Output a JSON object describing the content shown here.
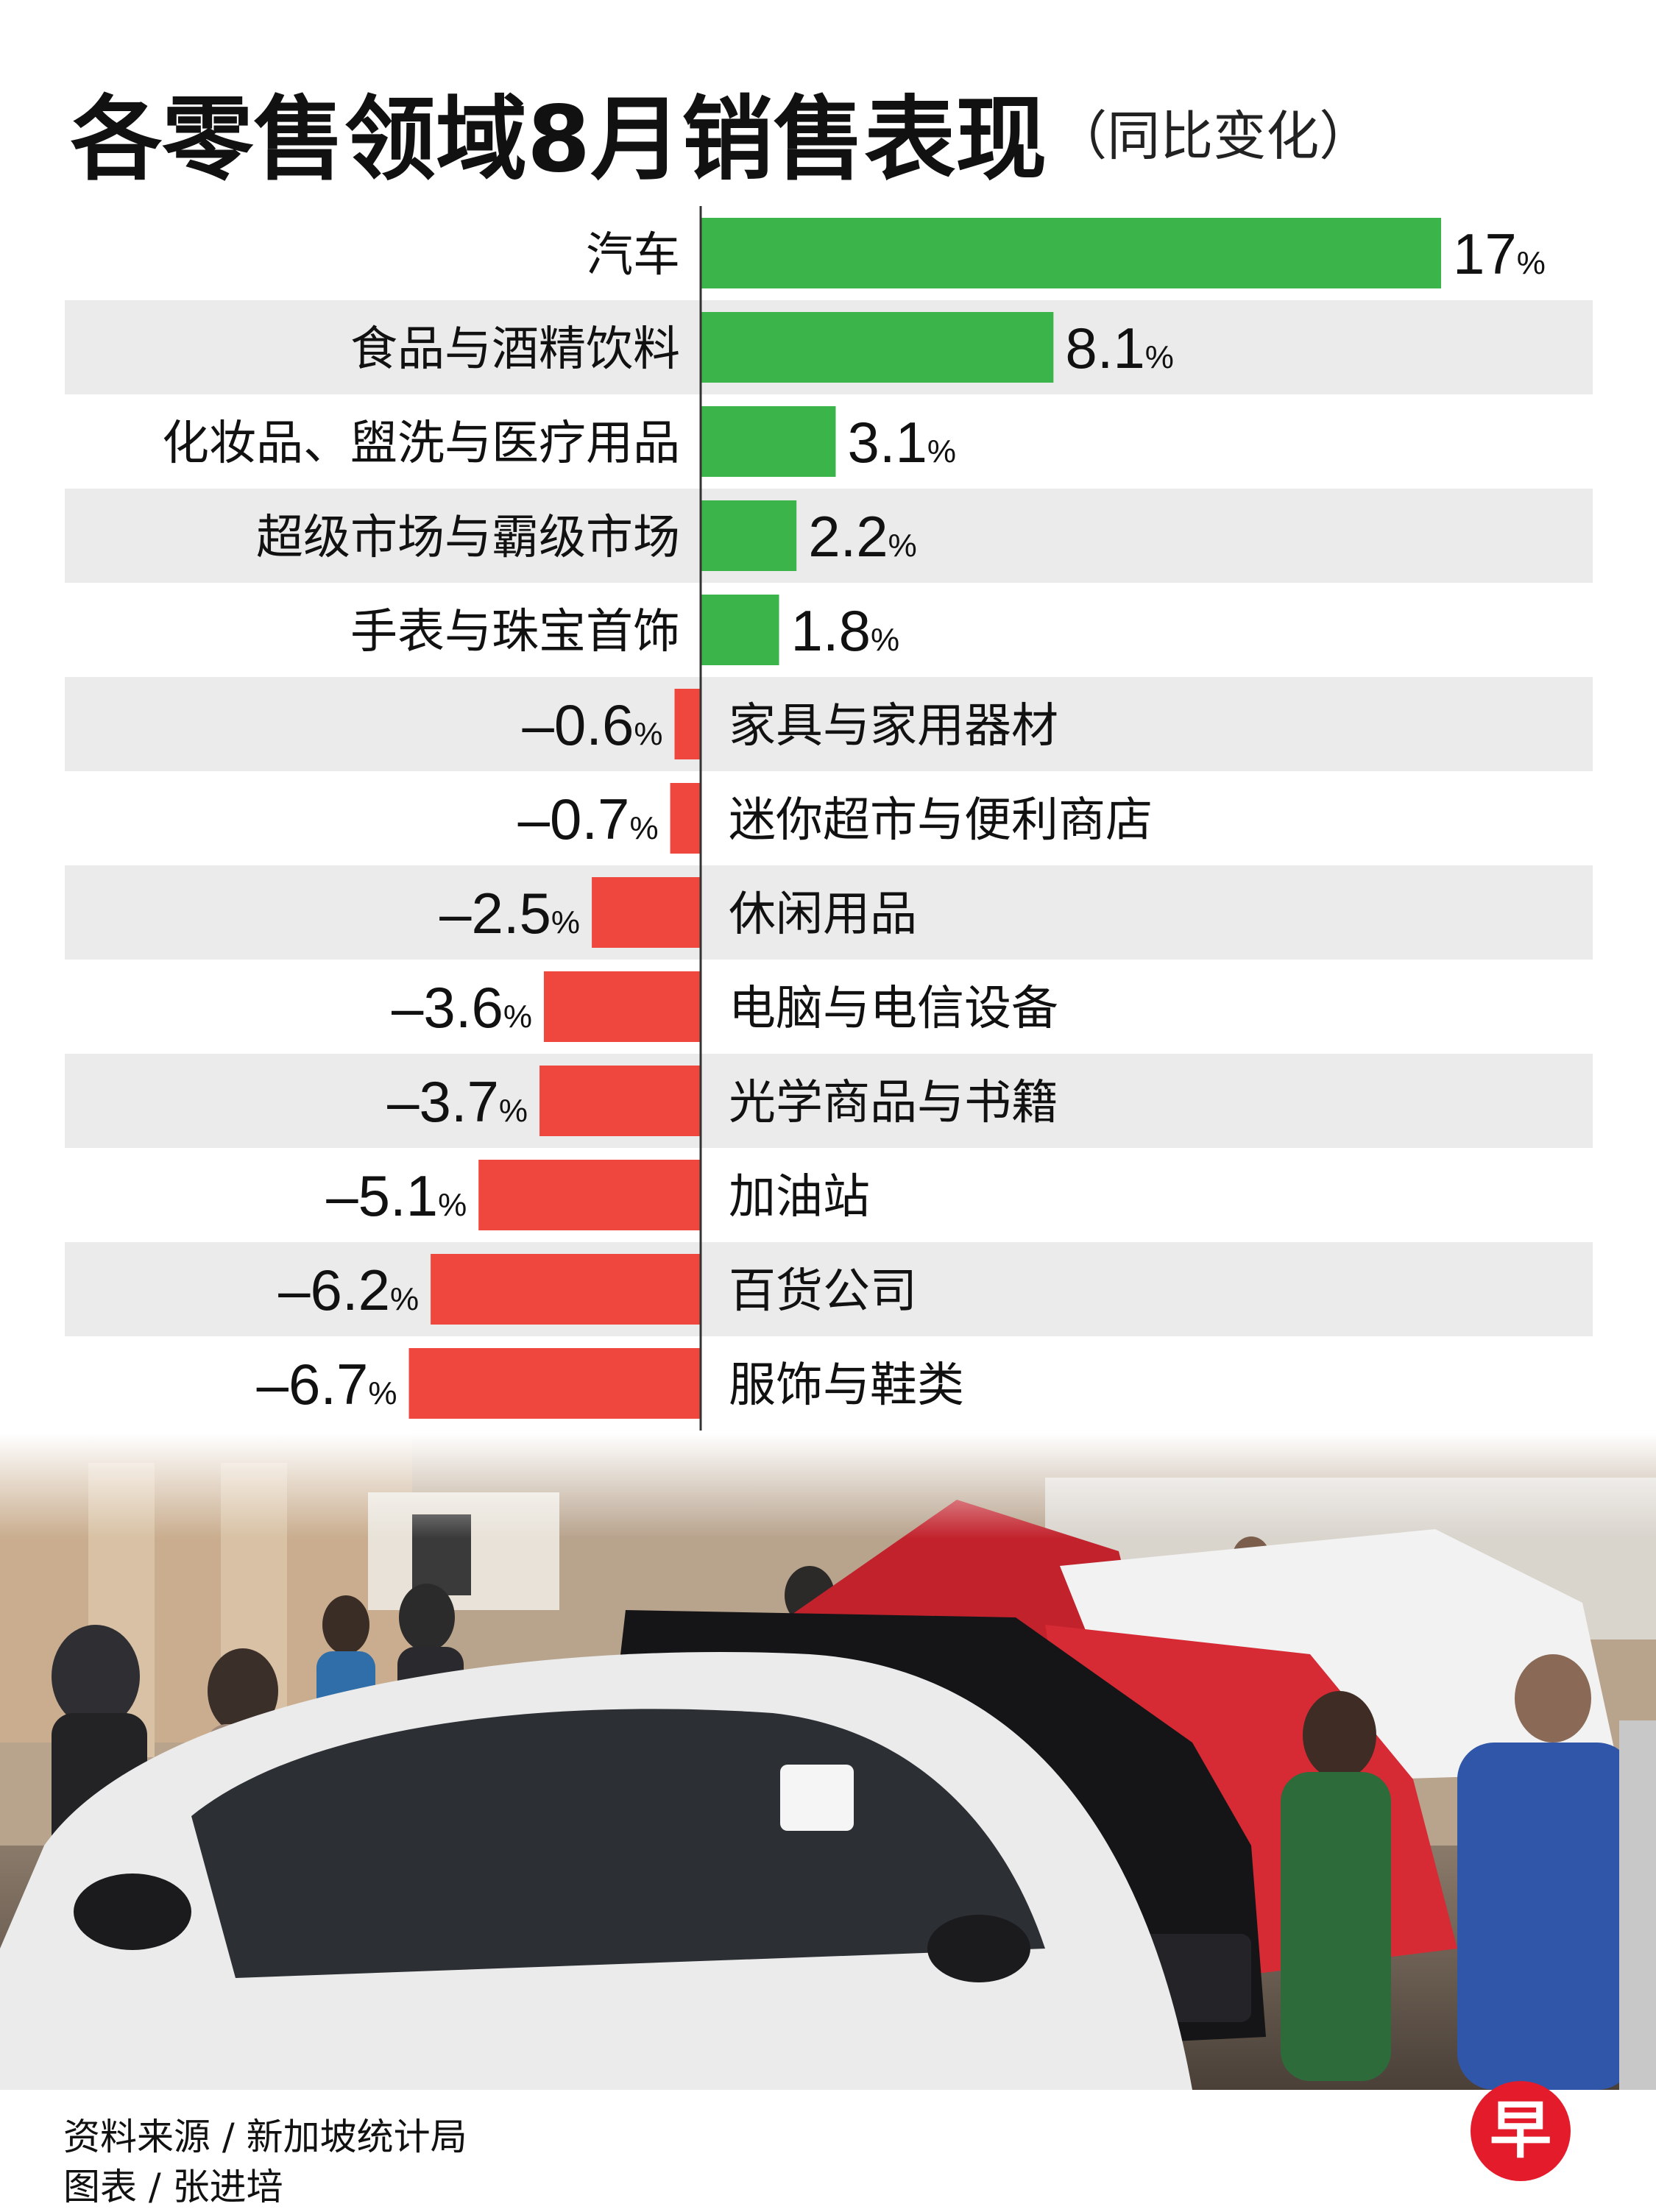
{
  "title": {
    "main": "各零售领域8月销售表现",
    "sub": "（同比变化）"
  },
  "chart_data": {
    "type": "bar",
    "orientation": "horizontal",
    "title": "各零售领域8月销售表现（同比变化）",
    "unit": "%",
    "categories": [
      "汽车",
      "食品与酒精饮料",
      "化妆品、盥洗与医疗用品",
      "超级市场与霸级市场",
      "手表与珠宝首饰",
      "家具与家用器材",
      "迷你超市与便利商店",
      "休闲用品",
      "电脑与电信设备",
      "光学商品与书籍",
      "加油站",
      "百货公司",
      "服饰与鞋类"
    ],
    "values": [
      17,
      8.1,
      3.1,
      2.2,
      1.8,
      -0.6,
      -0.7,
      -2.5,
      -3.6,
      -3.7,
      -5.1,
      -6.2,
      -6.7
    ],
    "labels": [
      "17",
      "8.1",
      "3.1",
      "2.2",
      "1.8",
      "–0.6",
      "–0.7",
      "–2.5",
      "–3.6",
      "–3.7",
      "–5.1",
      "–6.2",
      "–6.7"
    ],
    "colors": {
      "positive": "#3bb54a",
      "negative": "#ef473d",
      "band": "#ebebeb"
    }
  },
  "footer": {
    "source": "资料来源 / 新加坡统计局",
    "credit": "图表 / 张进培"
  },
  "logo": {
    "char": "早",
    "color": "#e31b2b"
  }
}
